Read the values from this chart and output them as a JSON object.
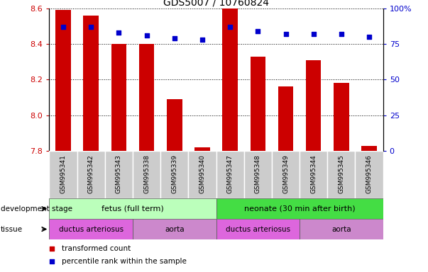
{
  "title": "GDS5007 / 10760824",
  "samples": [
    "GSM995341",
    "GSM995342",
    "GSM995343",
    "GSM995338",
    "GSM995339",
    "GSM995340",
    "GSM995347",
    "GSM995348",
    "GSM995349",
    "GSM995344",
    "GSM995345",
    "GSM995346"
  ],
  "transformed_count": [
    8.59,
    8.56,
    8.4,
    8.4,
    8.09,
    7.82,
    8.6,
    8.33,
    8.16,
    8.31,
    8.18,
    7.83
  ],
  "percentile_rank": [
    87,
    87,
    83,
    81,
    79,
    78,
    87,
    84,
    82,
    82,
    82,
    80
  ],
  "ymin": 7.8,
  "ymax": 8.6,
  "yticks": [
    7.8,
    8.0,
    8.2,
    8.4,
    8.6
  ],
  "y2min": 0,
  "y2max": 100,
  "y2ticks": [
    0,
    25,
    50,
    75,
    100
  ],
  "y2tick_labels": [
    "0",
    "25",
    "50",
    "75",
    "100%"
  ],
  "bar_color": "#cc0000",
  "dot_color": "#0000cc",
  "dev_stage_colors": [
    "#bbffbb",
    "#44dd44"
  ],
  "dev_stage_labels": [
    "fetus (full term)",
    "neonate (30 min after birth)"
  ],
  "dev_stage_spans": [
    6,
    6
  ],
  "tissue_colors_alt": [
    "#dd66dd",
    "#cc88cc"
  ],
  "tissue_blocks": [
    {
      "start": 0,
      "end": 3,
      "label": "ductus arteriosus",
      "color": "#dd66dd"
    },
    {
      "start": 3,
      "end": 6,
      "label": "aorta",
      "color": "#cc88cc"
    },
    {
      "start": 6,
      "end": 9,
      "label": "ductus arteriosus",
      "color": "#dd66dd"
    },
    {
      "start": 9,
      "end": 12,
      "label": "aorta",
      "color": "#cc88cc"
    }
  ],
  "tick_color_left": "#cc0000",
  "tick_color_right": "#0000cc",
  "bar_bottom": 7.8,
  "sample_box_color": "#cccccc",
  "legend_items": [
    {
      "color": "#cc0000",
      "marker": "s",
      "label": "transformed count"
    },
    {
      "color": "#0000cc",
      "marker": "s",
      "label": "percentile rank within the sample"
    }
  ]
}
